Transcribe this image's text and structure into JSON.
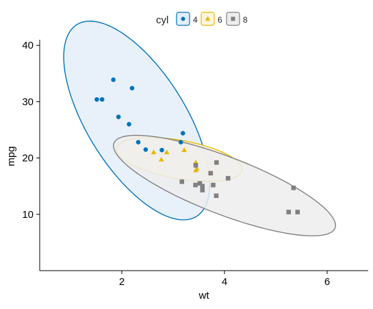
{
  "chart_data": {
    "type": "scatter",
    "title": "",
    "xlabel": "wt",
    "ylabel": "mpg",
    "xlim": [
      0.4,
      6.8
    ],
    "ylim": [
      0.0,
      41.0
    ],
    "x_ticks": [
      2,
      4,
      6
    ],
    "y_ticks": [
      10,
      20,
      30,
      40
    ],
    "x_tick_labels": [
      "2",
      "4",
      "6"
    ],
    "y_tick_labels": [
      "10",
      "20",
      "30",
      "40"
    ],
    "grid": false,
    "legend": {
      "title": "cyl",
      "position": "top"
    },
    "series": [
      {
        "name": "4",
        "color": "#0072BB",
        "fill": "#E4EEF9",
        "marker": "circle",
        "x": [
          2.32,
          2.2,
          1.615,
          1.835,
          2.465,
          1.935,
          2.14,
          2.78,
          3.19,
          3.15,
          1.513
        ],
        "y": [
          22.8,
          32.4,
          30.4,
          33.9,
          21.5,
          27.3,
          26.0,
          21.4,
          24.4,
          22.8,
          30.4
        ]
      },
      {
        "name": "6",
        "color": "#E7B800",
        "fill": "#FDF5DC",
        "marker": "triangle",
        "x": [
          2.62,
          2.875,
          3.215,
          3.46,
          3.44,
          3.44,
          2.77
        ],
        "y": [
          21.0,
          21.0,
          21.4,
          18.1,
          19.2,
          17.8,
          19.7
        ]
      },
      {
        "name": "8",
        "color": "#808080",
        "fill": "#EDEDED",
        "marker": "square",
        "x": [
          3.44,
          3.57,
          4.07,
          3.73,
          3.78,
          5.25,
          5.424,
          5.345,
          3.52,
          3.435,
          3.84,
          3.845,
          3.17,
          3.57
        ],
        "y": [
          18.7,
          14.3,
          16.4,
          17.3,
          15.2,
          10.4,
          10.4,
          14.7,
          15.5,
          15.2,
          13.3,
          19.2,
          15.8,
          15.0
        ]
      }
    ],
    "ellipses": [
      {
        "group": "4",
        "center": [
          2.29,
          26.66
        ],
        "rx": 2.37,
        "ry": 5.4,
        "angle_data": -75.8
      },
      {
        "group": "6",
        "center": [
          3.12,
          19.74
        ],
        "rx": 1.42,
        "ry": 3.77,
        "angle_data": -83.2
      },
      {
        "group": "8",
        "center": [
          4.0,
          15.1
        ],
        "rx": 2.16,
        "ry": 4.27,
        "angle_data": -51.0
      }
    ]
  }
}
